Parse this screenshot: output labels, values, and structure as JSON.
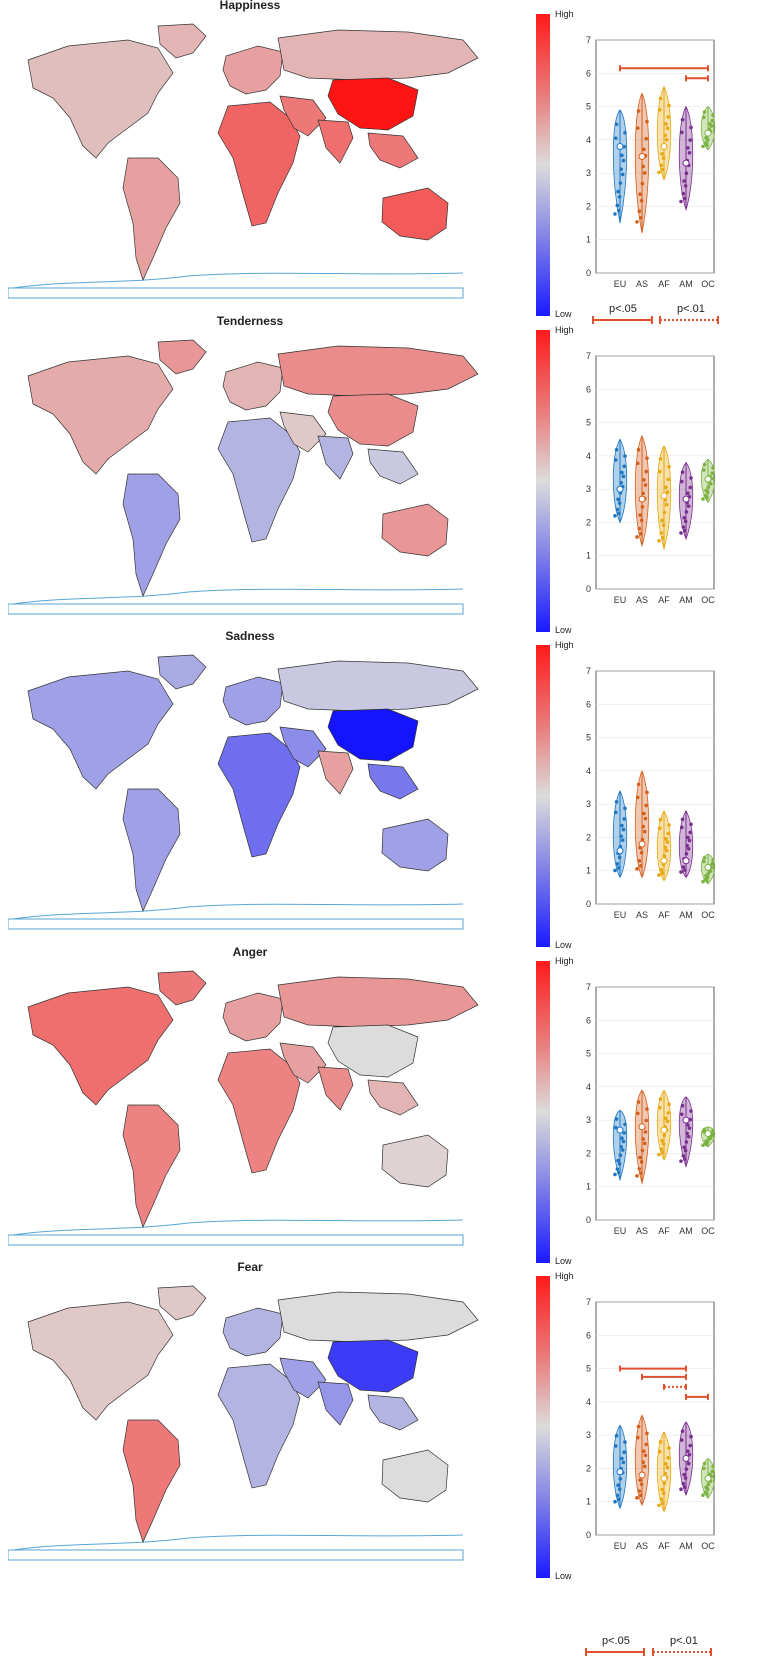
{
  "colorbar": {
    "high": "High",
    "low": "Low"
  },
  "group_colors": {
    "EU": "#1f77c4",
    "AS": "#d35f1e",
    "AF": "#e7a812",
    "AM": "#7a2e8f",
    "OC": "#7cb342"
  },
  "significance_labels": {
    "p05": "p<.05",
    "p01": "p<.01"
  },
  "sig_color": "#e0502f",
  "chart_data": [
    {
      "type": "violin",
      "title": "Happiness",
      "categories": [
        "EU",
        "AS",
        "AF",
        "AM",
        "OC"
      ],
      "ylim": [
        0,
        7
      ],
      "yticks": [
        "0",
        "1",
        "2",
        "3",
        "4",
        "5",
        "6",
        "7"
      ],
      "medians": [
        3.8,
        3.5,
        3.8,
        3.3,
        4.2
      ],
      "ranges": [
        [
          1.5,
          4.9
        ],
        [
          1.2,
          5.4
        ],
        [
          2.8,
          5.6
        ],
        [
          1.9,
          5.0
        ],
        [
          3.7,
          5.0
        ]
      ],
      "significance": [
        {
          "from": "EU",
          "to": "OC",
          "y": 6.15,
          "style": "solid"
        },
        {
          "from": "AM",
          "to": "OC",
          "y": 5.85,
          "style": "solid"
        }
      ],
      "map_tone": {
        "NA": 0.15,
        "GL": 0.2,
        "SA": 0.3,
        "EU": 0.3,
        "AF": 0.6,
        "ME": 0.5,
        "RU": 0.2,
        "CN": 1.0,
        "IN": 0.55,
        "SEA": 0.5,
        "AU": 0.65
      }
    },
    {
      "type": "violin",
      "title": "Tenderness",
      "categories": [
        "EU",
        "AS",
        "AF",
        "AM",
        "OC"
      ],
      "ylim": [
        0,
        7
      ],
      "yticks": [
        "0",
        "1",
        "2",
        "3",
        "4",
        "5",
        "6",
        "7"
      ],
      "medians": [
        3.0,
        2.7,
        2.8,
        2.7,
        3.3
      ],
      "ranges": [
        [
          2.0,
          4.5
        ],
        [
          1.3,
          4.6
        ],
        [
          1.2,
          4.3
        ],
        [
          1.5,
          3.8
        ],
        [
          2.6,
          3.9
        ]
      ],
      "significance": [],
      "map_tone": {
        "NA": 0.25,
        "GL": 0.35,
        "SA": -0.3,
        "EU": 0.2,
        "AF": -0.2,
        "ME": 0.1,
        "RU": 0.4,
        "CN": 0.4,
        "IN": -0.2,
        "SEA": -0.1,
        "AU": 0.35
      }
    },
    {
      "type": "violin",
      "title": "Sadness",
      "categories": [
        "EU",
        "AS",
        "AF",
        "AM",
        "OC"
      ],
      "ylim": [
        0,
        7
      ],
      "yticks": [
        "0",
        "1",
        "2",
        "3",
        "4",
        "5",
        "6",
        "7"
      ],
      "medians": [
        1.6,
        1.8,
        1.3,
        1.3,
        1.1
      ],
      "ranges": [
        [
          0.8,
          3.4
        ],
        [
          0.8,
          4.0
        ],
        [
          0.7,
          2.8
        ],
        [
          0.8,
          2.8
        ],
        [
          0.6,
          1.5
        ]
      ],
      "significance": [],
      "map_tone": {
        "NA": -0.3,
        "GL": -0.25,
        "SA": -0.3,
        "EU": -0.3,
        "AF": -0.55,
        "ME": -0.4,
        "RU": -0.1,
        "CN": -1.0,
        "IN": 0.3,
        "SEA": -0.5,
        "AU": -0.3
      }
    },
    {
      "type": "violin",
      "title": "Anger",
      "categories": [
        "EU",
        "AS",
        "AF",
        "AM",
        "OC"
      ],
      "ylim": [
        0,
        7
      ],
      "yticks": [
        "0",
        "1",
        "2",
        "3",
        "4",
        "5",
        "6",
        "7"
      ],
      "medians": [
        2.7,
        2.8,
        2.7,
        3.0,
        2.6
      ],
      "ranges": [
        [
          1.2,
          3.3
        ],
        [
          1.1,
          3.9
        ],
        [
          1.8,
          3.9
        ],
        [
          1.6,
          3.7
        ],
        [
          2.2,
          2.8
        ]
      ],
      "significance": [],
      "map_tone": {
        "NA": 0.55,
        "GL": 0.5,
        "SA": 0.45,
        "EU": 0.3,
        "AF": 0.45,
        "ME": 0.3,
        "RU": 0.35,
        "CN": 0.0,
        "IN": 0.4,
        "SEA": 0.2,
        "AU": 0.05
      }
    },
    {
      "type": "violin",
      "title": "Fear",
      "categories": [
        "EU",
        "AS",
        "AF",
        "AM",
        "OC"
      ],
      "ylim": [
        0,
        7
      ],
      "yticks": [
        "0",
        "1",
        "2",
        "3",
        "4",
        "5",
        "6",
        "7"
      ],
      "medians": [
        1.9,
        1.8,
        1.7,
        2.3,
        1.7
      ],
      "ranges": [
        [
          0.8,
          3.3
        ],
        [
          0.9,
          3.6
        ],
        [
          0.7,
          3.1
        ],
        [
          1.2,
          3.4
        ],
        [
          1.1,
          2.3
        ]
      ],
      "significance": [
        {
          "from": "EU",
          "to": "AM",
          "y": 5.0,
          "style": "solid"
        },
        {
          "from": "AS",
          "to": "AM",
          "y": 4.75,
          "style": "solid"
        },
        {
          "from": "AF",
          "to": "AM",
          "y": 4.45,
          "style": "dotted"
        },
        {
          "from": "AM",
          "to": "OC",
          "y": 4.15,
          "style": "solid"
        }
      ],
      "map_tone": {
        "NA": 0.1,
        "GL": 0.1,
        "SA": 0.5,
        "EU": -0.2,
        "AF": -0.2,
        "ME": -0.3,
        "RU": 0.0,
        "CN": -0.8,
        "IN": -0.35,
        "SEA": -0.2,
        "AU": 0.0
      }
    }
  ]
}
